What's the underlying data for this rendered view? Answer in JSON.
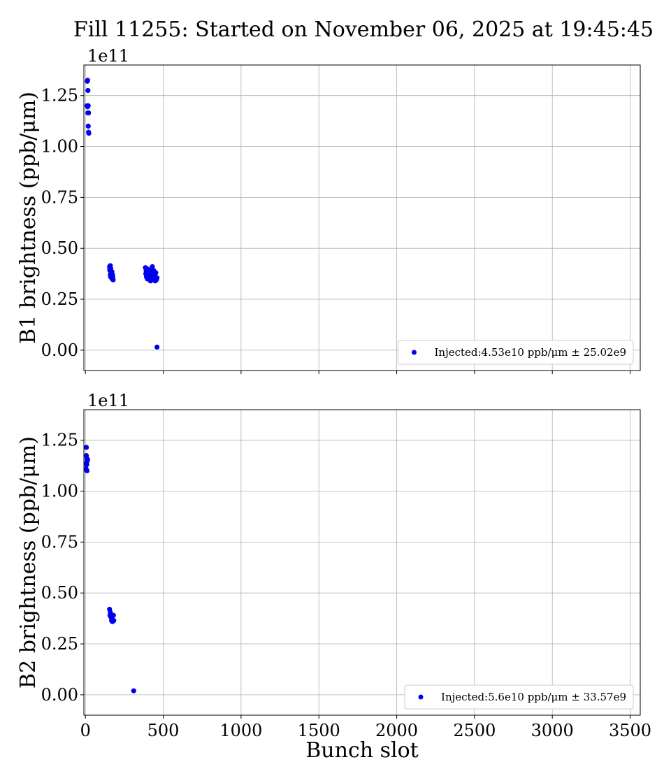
{
  "title": "Fill 11255: Started on November 06, 2025 at 19:45:45",
  "chart_data": [
    {
      "type": "scatter",
      "ylabel": "B1 brightness (ppb/μm)",
      "xlabel": "",
      "offset_label": "1e11",
      "xlim": [
        -10,
        3565
      ],
      "ylim": [
        -0.1,
        1.4
      ],
      "xticks": [
        0,
        500,
        1000,
        1500,
        2000,
        2500,
        3000,
        3500
      ],
      "yticks": [
        0.0,
        0.25,
        0.5,
        0.75,
        1.0,
        1.25
      ],
      "ytick_labels": [
        "0.00",
        "0.25",
        "0.50",
        "0.75",
        "1.00",
        "1.25"
      ],
      "show_xtick_labels": false,
      "grid": true,
      "color": "#0000ee",
      "legend": {
        "placement": "lower-right",
        "text": "Injected:4.53e10 ppb/μm ± 25.02e9"
      },
      "series": [
        {
          "name": "Injected:4.53e10 ppb/μm ± 25.02e9",
          "points": [
            [
              12,
              1.32
            ],
            [
              14,
              1.325
            ],
            [
              16,
              1.275
            ],
            [
              10,
              1.2
            ],
            [
              14,
              1.195
            ],
            [
              18,
              1.2
            ],
            [
              16,
              1.165
            ],
            [
              20,
              1.165
            ],
            [
              18,
              1.1
            ],
            [
              20,
              1.07
            ],
            [
              22,
              1.065
            ],
            [
              155,
              0.41
            ],
            [
              160,
              0.415
            ],
            [
              158,
              0.39
            ],
            [
              163,
              0.4
            ],
            [
              166,
              0.38
            ],
            [
              160,
              0.37
            ],
            [
              170,
              0.385
            ],
            [
              164,
              0.36
            ],
            [
              174,
              0.37
            ],
            [
              168,
              0.355
            ],
            [
              176,
              0.36
            ],
            [
              172,
              0.35
            ],
            [
              162,
              0.36
            ],
            [
              178,
              0.345
            ],
            [
              156,
              0.395
            ],
            [
              385,
              0.405
            ],
            [
              390,
              0.39
            ],
            [
              395,
              0.4
            ],
            [
              388,
              0.375
            ],
            [
              400,
              0.385
            ],
            [
              405,
              0.37
            ],
            [
              392,
              0.36
            ],
            [
              410,
              0.38
            ],
            [
              415,
              0.36
            ],
            [
              408,
              0.35
            ],
            [
              420,
              0.37
            ],
            [
              425,
              0.345
            ],
            [
              430,
              0.41
            ],
            [
              435,
              0.38
            ],
            [
              428,
              0.36
            ],
            [
              440,
              0.39
            ],
            [
              445,
              0.37
            ],
            [
              438,
              0.35
            ],
            [
              450,
              0.36
            ],
            [
              455,
              0.345
            ],
            [
              448,
              0.34
            ],
            [
              460,
              0.355
            ],
            [
              418,
              0.34
            ],
            [
              432,
              0.365
            ],
            [
              398,
              0.35
            ],
            [
              442,
              0.375
            ],
            [
              412,
              0.395
            ],
            [
              452,
              0.38
            ],
            [
              422,
              0.39
            ],
            [
              460,
              0.015
            ]
          ]
        }
      ]
    },
    {
      "type": "scatter",
      "ylabel": "B2 brightness (ppb/μm)",
      "xlabel": "Bunch slot",
      "offset_label": "1e11",
      "xlim": [
        -10,
        3565
      ],
      "ylim": [
        -0.1,
        1.4
      ],
      "xticks": [
        0,
        500,
        1000,
        1500,
        2000,
        2500,
        3000,
        3500
      ],
      "yticks": [
        0.0,
        0.25,
        0.5,
        0.75,
        1.0,
        1.25
      ],
      "ytick_labels": [
        "0.00",
        "0.25",
        "0.50",
        "0.75",
        "1.00",
        "1.25"
      ],
      "show_xtick_labels": true,
      "grid": true,
      "color": "#0000ee",
      "legend": {
        "placement": "lower-right",
        "text": "Injected:5.6e10 ppb/μm ± 33.57e9"
      },
      "series": [
        {
          "name": "Injected:5.6e10 ppb/μm ± 33.57e9",
          "points": [
            [
              6,
              1.215
            ],
            [
              6,
              1.175
            ],
            [
              10,
              1.16
            ],
            [
              12,
              1.15
            ],
            [
              8,
              1.14
            ],
            [
              4,
              1.135
            ],
            [
              14,
              1.155
            ],
            [
              8,
              1.13
            ],
            [
              4,
              1.11
            ],
            [
              10,
              1.1
            ],
            [
              6,
              1.105
            ],
            [
              155,
              0.42
            ],
            [
              160,
              0.405
            ],
            [
              158,
              0.39
            ],
            [
              165,
              0.38
            ],
            [
              170,
              0.375
            ],
            [
              168,
              0.365
            ],
            [
              175,
              0.36
            ],
            [
              180,
              0.39
            ],
            [
              172,
              0.36
            ],
            [
              182,
              0.365
            ],
            [
              162,
              0.385
            ],
            [
              310,
              0.02
            ]
          ]
        }
      ]
    }
  ]
}
